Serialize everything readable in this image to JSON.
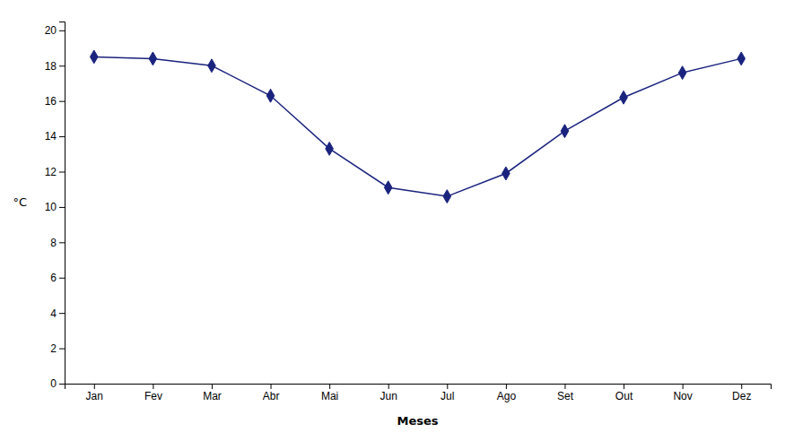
{
  "chart_data": {
    "type": "line",
    "categories": [
      "Jan",
      "Fev",
      "Mar",
      "Abr",
      "Mai",
      "Jun",
      "Jul",
      "Ago",
      "Set",
      "Out",
      "Nov",
      "Dez"
    ],
    "values": [
      18.5,
      18.4,
      18.0,
      16.3,
      13.3,
      11.1,
      10.6,
      11.9,
      14.3,
      16.2,
      17.6,
      18.4
    ],
    "xlabel": "Meses",
    "ylabel": "°C",
    "ylim": [
      0,
      20.5
    ],
    "yticks": [
      0,
      2,
      4,
      6,
      8,
      10,
      12,
      14,
      16,
      18,
      20
    ],
    "color": "#1a237e",
    "marker": "diamond",
    "grid": false
  }
}
